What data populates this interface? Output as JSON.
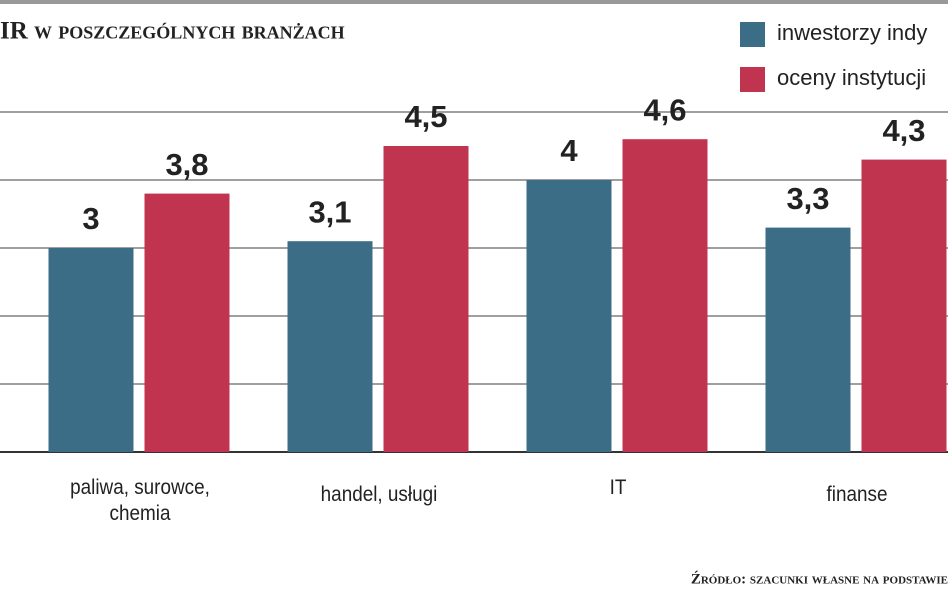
{
  "chart_data": {
    "type": "bar",
    "title": "IR w poszczególnych branżach",
    "categories": [
      "paliwa, surowce, chemia",
      "handel, usługi",
      "IT",
      "finanse"
    ],
    "series": [
      {
        "name": "inwestorzy indy",
        "color": "#3b6e86",
        "values": [
          3,
          3.1,
          4,
          3.3
        ],
        "value_labels": [
          "3",
          "3,1",
          "4",
          "3,3"
        ]
      },
      {
        "name": "oceny instytucji",
        "color": "#c0344f",
        "values": [
          3.8,
          4.5,
          4.6,
          4.3
        ],
        "value_labels": [
          "3,8",
          "4,5",
          "4,6",
          "4,3"
        ]
      }
    ],
    "ylim": [
      0,
      5
    ],
    "yticks": [
      0,
      1,
      2,
      3,
      4,
      5
    ],
    "grid": true,
    "source": "Źródło: szacunki własne na podstawie"
  }
}
